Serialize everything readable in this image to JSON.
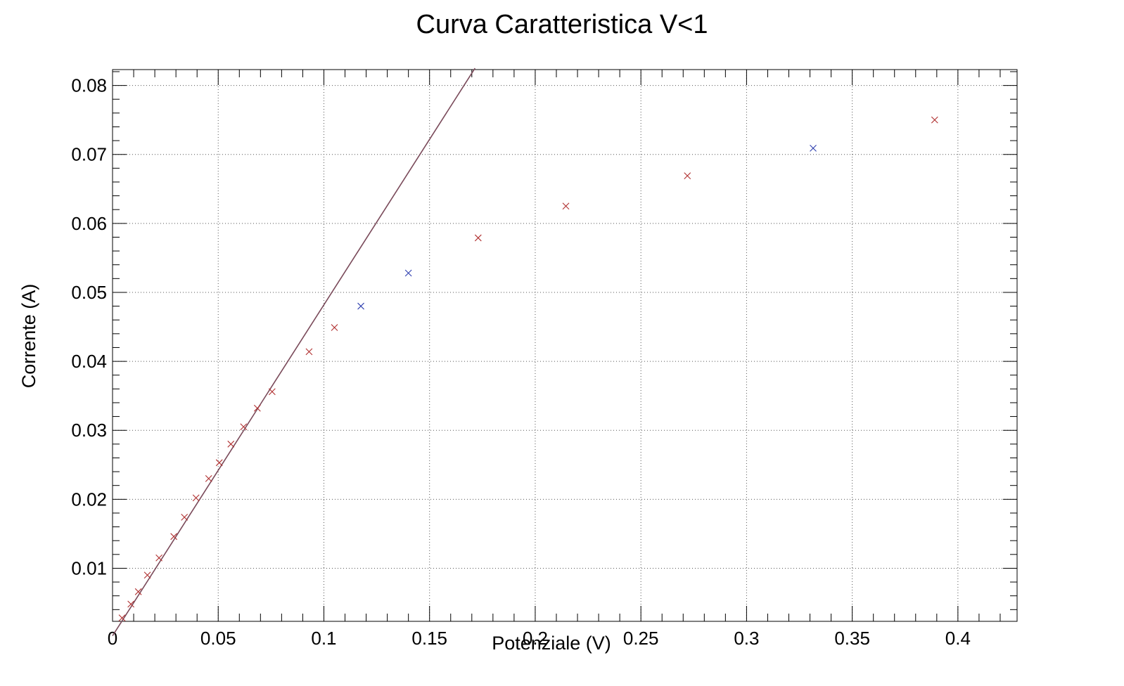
{
  "chart_data": {
    "type": "scatter",
    "title": "Curva Caratteristica V<1",
    "xlabel": "Potenziale (V)",
    "ylabel": "Corrente (A)",
    "xlim": [
      0,
      0.428
    ],
    "ylim": [
      0.0023,
      0.0823
    ],
    "x_ticks": [
      0,
      0.05,
      0.1,
      0.15,
      0.2,
      0.25,
      0.3,
      0.35,
      0.4
    ],
    "x_tick_labels": [
      "0",
      "0.05",
      "0.1",
      "0.15",
      "0.2",
      "0.25",
      "0.3",
      "0.35",
      "0.4"
    ],
    "y_ticks": [
      0.01,
      0.02,
      0.03,
      0.04,
      0.05,
      0.06,
      0.07,
      0.08
    ],
    "y_tick_labels": [
      "0.01",
      "0.02",
      "0.03",
      "0.04",
      "0.05",
      "0.06",
      "0.07",
      "0.08"
    ],
    "grid": true,
    "marker": "x",
    "series": [
      {
        "color": "#b03030",
        "points": [
          [
            0.0045,
            0.0028
          ],
          [
            0.0087,
            0.0048
          ],
          [
            0.0122,
            0.0066
          ],
          [
            0.0165,
            0.009
          ],
          [
            0.022,
            0.0115
          ],
          [
            0.029,
            0.0146
          ],
          [
            0.034,
            0.0174
          ],
          [
            0.0395,
            0.0202
          ],
          [
            0.0455,
            0.023
          ],
          [
            0.0505,
            0.0253
          ],
          [
            0.056,
            0.028
          ],
          [
            0.062,
            0.0305
          ],
          [
            0.0685,
            0.0332
          ],
          [
            0.0755,
            0.0356
          ],
          [
            0.093,
            0.0414
          ],
          [
            0.105,
            0.0449
          ],
          [
            0.173,
            0.0579
          ],
          [
            0.2145,
            0.0625
          ],
          [
            0.272,
            0.0669
          ],
          [
            0.389,
            0.075
          ]
        ]
      },
      {
        "color": "#3040b0",
        "points": [
          [
            0.1175,
            0.048
          ],
          [
            0.14,
            0.0528
          ],
          [
            0.3315,
            0.0709
          ]
        ]
      }
    ],
    "fit_line": {
      "color": "#7a4a5a",
      "from": [
        0.0,
        0.0002
      ],
      "to": [
        0.1715,
        0.0825
      ]
    }
  }
}
